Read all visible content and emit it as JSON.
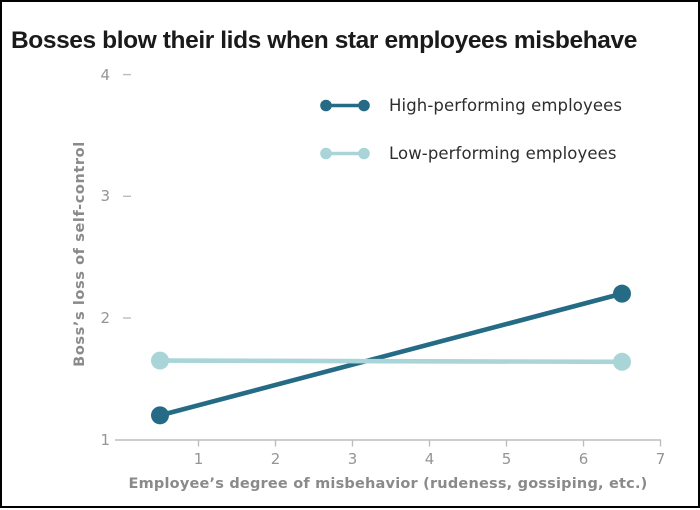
{
  "title": "Bosses blow their lids when star employees misbehave",
  "chart_data": {
    "type": "line",
    "variant": "dumbbell-slope",
    "title": "Bosses blow their lids when star employees misbehave",
    "x": [
      0.5,
      6.5
    ],
    "series": [
      {
        "name": "High-performing employees",
        "values": [
          1.2,
          2.2
        ],
        "color": "#266b85"
      },
      {
        "name": "Low-performing employees",
        "values": [
          1.65,
          1.64
        ],
        "color": "#a9d5d8"
      }
    ],
    "xlabel": "Employee’s degree of misbehavior (rudeness, gossiping, etc.)",
    "ylabel": "Boss’s loss of self-control",
    "xlim": [
      0,
      7
    ],
    "ylim": [
      1,
      4
    ],
    "xticks": [
      1,
      2,
      3,
      4,
      5,
      6,
      7
    ],
    "yticks": [
      1,
      2,
      3,
      4
    ],
    "grid": false,
    "legend_position": "top-right-inside",
    "marker": "circle",
    "axis_line_color": "#bdbdbd",
    "tick_label_color": "#959595",
    "axis_title_color": "#8a8a8a"
  }
}
